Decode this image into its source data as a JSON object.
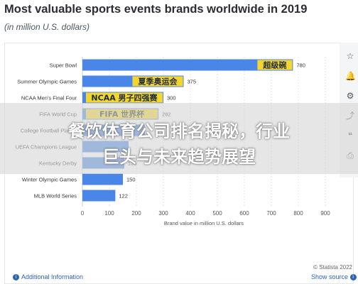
{
  "title": "Most valuable sports events brands worldwide in 2019",
  "subtitle": "(in million U.S. dollars)",
  "copyright": "© Statista 2022",
  "footer": {
    "additional_info": "Additional Information",
    "show_source": "Show source"
  },
  "overlay": {
    "line1": "餐饮体育公司排名揭秘，行业",
    "line2": "巨头与未来趋势展望"
  },
  "colors": {
    "bar": "#4a86e8",
    "bar_dark": "#3a75d6",
    "banner": "#f4d52e",
    "link": "#2f62b3"
  },
  "chart_data": {
    "type": "bar",
    "orientation": "horizontal",
    "categories": [
      "Super Bowl",
      "Summer Olympic Games",
      "NCAA Men's Final Four",
      "FIFA World Cup",
      "College Football Playoff",
      "UEFA Champions League",
      "Kentucky Derby",
      "Winter Olympic Games",
      "MLB World Series"
    ],
    "values": [
      780,
      375,
      300,
      282,
      232,
      171,
      155,
      150,
      122
    ],
    "value_labels": [
      "780",
      "375",
      "300",
      "282",
      "",
      "",
      "155",
      "150",
      "122"
    ],
    "banner_labels": [
      "超级碗",
      "夏季奥运会",
      "NCAA 男子四强赛",
      "FIFA 世界杯",
      "",
      "",
      "",
      "",
      ""
    ],
    "xlabel": "Brand value in million U.S. dollars",
    "xlim": [
      0,
      900
    ],
    "xticks": [
      0,
      100,
      200,
      300,
      400,
      500,
      600,
      700,
      800,
      900
    ],
    "grid": true,
    "legend": "none"
  }
}
